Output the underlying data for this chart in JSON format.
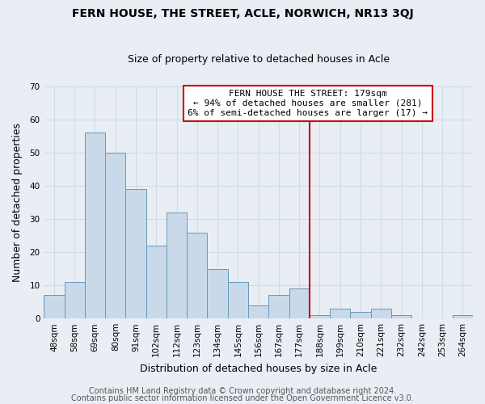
{
  "title": "FERN HOUSE, THE STREET, ACLE, NORWICH, NR13 3QJ",
  "subtitle": "Size of property relative to detached houses in Acle",
  "xlabel": "Distribution of detached houses by size in Acle",
  "ylabel": "Number of detached properties",
  "bar_labels": [
    "48sqm",
    "58sqm",
    "69sqm",
    "80sqm",
    "91sqm",
    "102sqm",
    "112sqm",
    "123sqm",
    "134sqm",
    "145sqm",
    "156sqm",
    "167sqm",
    "177sqm",
    "188sqm",
    "199sqm",
    "210sqm",
    "221sqm",
    "232sqm",
    "242sqm",
    "253sqm",
    "264sqm"
  ],
  "bar_values": [
    7,
    11,
    56,
    50,
    39,
    22,
    32,
    26,
    15,
    11,
    4,
    7,
    9,
    1,
    3,
    2,
    3,
    1,
    0,
    0,
    1
  ],
  "bar_color": "#c9d9ea",
  "bar_edge_color": "#6699bb",
  "vline_index": 12,
  "vline_color": "#cc0000",
  "ylim": [
    0,
    70
  ],
  "yticks": [
    0,
    10,
    20,
    30,
    40,
    50,
    60,
    70
  ],
  "annotation_title": "FERN HOUSE THE STREET: 179sqm",
  "annotation_line1": "← 94% of detached houses are smaller (281)",
  "annotation_line2": "6% of semi-detached houses are larger (17) →",
  "annotation_box_facecolor": "#ffffff",
  "annotation_box_edgecolor": "#cc0000",
  "footer1": "Contains HM Land Registry data © Crown copyright and database right 2024.",
  "footer2": "Contains public sector information licensed under the Open Government Licence v3.0.",
  "background_color": "#e8eef4",
  "grid_color": "#d0dce8",
  "title_fontsize": 10,
  "subtitle_fontsize": 9,
  "tick_fontsize": 7.5,
  "axis_label_fontsize": 9,
  "annotation_fontsize": 8,
  "footer_fontsize": 7
}
